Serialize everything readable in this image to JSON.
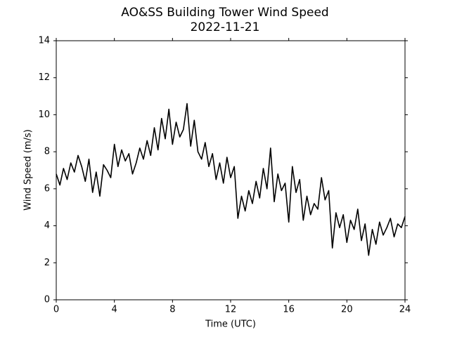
{
  "chart_data": {
    "type": "line",
    "title": "AO&SS Building Tower Wind Speed",
    "subtitle": "2022-11-21",
    "x_label": "Time (UTC)",
    "y_label": "Wind Speed (m/s)",
    "xlim": [
      0,
      24
    ],
    "xticks": [
      0,
      4,
      8,
      12,
      16,
      20,
      24
    ],
    "ylim": [
      0,
      14
    ],
    "yticks": [
      0,
      2,
      4,
      6,
      8,
      10,
      12,
      14
    ],
    "grid": false,
    "x": [
      0,
      0.25,
      0.5,
      0.75,
      1,
      1.25,
      1.5,
      1.75,
      2,
      2.25,
      2.5,
      2.75,
      3,
      3.25,
      3.5,
      3.75,
      4,
      4.25,
      4.5,
      4.75,
      5,
      5.25,
      5.5,
      5.75,
      6,
      6.25,
      6.5,
      6.75,
      7,
      7.25,
      7.5,
      7.75,
      8,
      8.25,
      8.5,
      8.75,
      9,
      9.25,
      9.5,
      9.75,
      10,
      10.25,
      10.5,
      10.75,
      11,
      11.25,
      11.5,
      11.75,
      12,
      12.25,
      12.5,
      12.75,
      13,
      13.25,
      13.5,
      13.75,
      14,
      14.25,
      14.5,
      14.75,
      15,
      15.25,
      15.5,
      15.75,
      16,
      16.25,
      16.5,
      16.75,
      17,
      17.25,
      17.5,
      17.75,
      18,
      18.25,
      18.5,
      18.75,
      19,
      19.25,
      19.5,
      19.75,
      20,
      20.25,
      20.5,
      20.75,
      21,
      21.25,
      21.5,
      21.75,
      22,
      22.25,
      22.5,
      22.75,
      23,
      23.25,
      23.5,
      23.75,
      24
    ],
    "series": [
      {
        "color": "#000000",
        "values": [
          6.8,
          6.2,
          7.1,
          6.5,
          7.4,
          6.9,
          7.8,
          7.2,
          6.4,
          7.6,
          5.8,
          6.9,
          5.6,
          7.3,
          7.0,
          6.6,
          8.4,
          7.2,
          8.1,
          7.5,
          7.9,
          6.8,
          7.4,
          8.2,
          7.6,
          8.6,
          7.8,
          9.3,
          8.1,
          9.8,
          8.7,
          10.3,
          8.4,
          9.6,
          8.8,
          9.2,
          10.6,
          8.3,
          9.7,
          8.0,
          7.6,
          8.5,
          7.2,
          7.9,
          6.5,
          7.4,
          6.3,
          7.7,
          6.6,
          7.2,
          4.4,
          5.6,
          4.8,
          5.9,
          5.2,
          6.4,
          5.5,
          7.1,
          6.0,
          8.2,
          5.3,
          6.8,
          5.9,
          6.3,
          4.2,
          7.2,
          5.8,
          6.5,
          4.3,
          5.6,
          4.6,
          5.2,
          4.9,
          6.6,
          5.4,
          5.9,
          2.8,
          4.7,
          3.9,
          4.6,
          3.1,
          4.3,
          3.8,
          4.9,
          3.2,
          4.1,
          2.4,
          3.8,
          3.0,
          4.2,
          3.5,
          3.9,
          4.4,
          3.4,
          4.1,
          3.9,
          4.5
        ]
      }
    ]
  }
}
